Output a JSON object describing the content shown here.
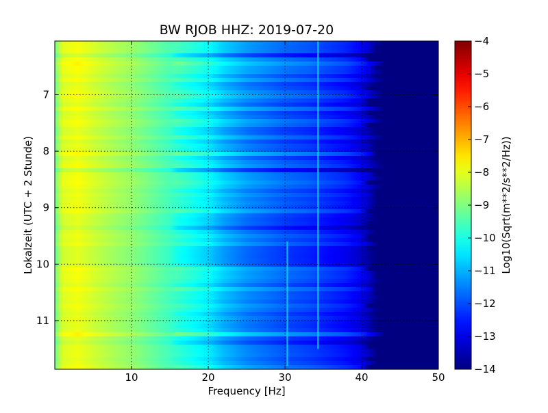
{
  "chart_data": {
    "type": "heatmap",
    "title": "BW RJOB HHZ: 2019-07-20",
    "xlabel": "Frequency [Hz]",
    "ylabel": "Lokalzeit (UTC + 2 Stunde)",
    "xlim": [
      0,
      50
    ],
    "ylim": [
      11.86,
      6.05
    ],
    "y_inverted": true,
    "grid": true,
    "x_ticks": [
      10,
      20,
      30,
      40,
      50
    ],
    "y_ticks": [
      7,
      8,
      9,
      10,
      11
    ],
    "x_tick_labels": [
      "10",
      "20",
      "30",
      "40",
      "50"
    ],
    "y_tick_labels": [
      "7",
      "8",
      "9",
      "10",
      "11"
    ],
    "colormap": "jet",
    "colorbar": {
      "label": "Log10(Sqrt(m**2/s**2/Hz))",
      "range": [
        -14,
        -4
      ],
      "ticks": [
        -4,
        -5,
        -6,
        -7,
        -8,
        -9,
        -10,
        -11,
        -12,
        -13,
        -14
      ],
      "tick_labels": [
        "−4",
        "−5",
        "−6",
        "−7",
        "−8",
        "−9",
        "−10",
        "−11",
        "−12",
        "−13",
        "−14"
      ]
    },
    "spectrum_profile": {
      "frequency_hz": [
        0.2,
        1,
        2,
        3,
        5,
        8,
        10,
        15,
        20,
        22,
        25,
        28,
        30,
        33,
        35,
        38,
        40,
        41,
        42,
        43,
        45,
        50
      ],
      "log10_amplitude": [
        -9.2,
        -8.1,
        -8.0,
        -7.9,
        -8.2,
        -8.6,
        -8.8,
        -9.6,
        -10.4,
        -10.9,
        -11.4,
        -11.7,
        -11.9,
        -12.1,
        -12.3,
        -12.6,
        -13.0,
        -13.4,
        -13.9,
        -14.0,
        -14.0,
        -14.0
      ]
    },
    "features": [
      {
        "frequency_hz": 30.3,
        "time_span": [
          9.6,
          11.8
        ]
      },
      {
        "frequency_hz": 34.3,
        "time_span": [
          6.05,
          11.5
        ]
      }
    ]
  }
}
